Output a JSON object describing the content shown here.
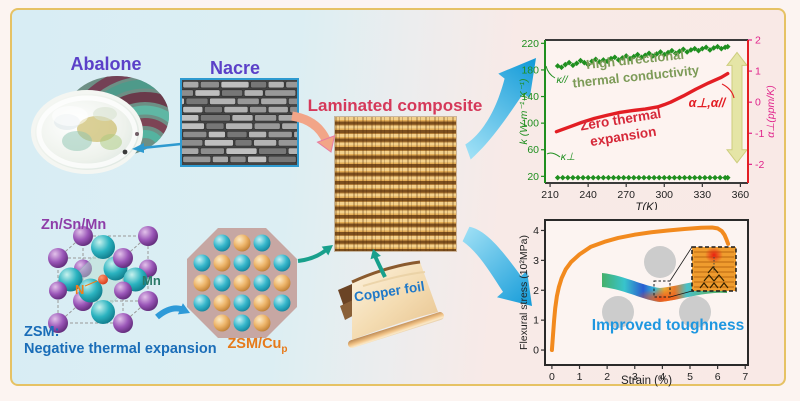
{
  "scene": {
    "abalone_label": "Abalone",
    "nacre_label": "Nacre",
    "laminated_label": "Laminated composite",
    "copper_foil_label": "Copper foil",
    "crystal": {
      "corner_atoms_label": "Zn/Sn/Mn",
      "face_atom_label": "Mn",
      "center_atom_label": "N",
      "caption_line1": "ZSM:",
      "caption_line2": "Negative thermal expansion"
    },
    "octagon": {
      "label": "ZSM/Cu",
      "label_subscript": "p",
      "sphere_rows": [
        "TOT",
        "TOTOT",
        "OTOTO",
        "TOTOT",
        "OTO"
      ]
    }
  },
  "colors": {
    "panel_blue": "#dceef3",
    "panel_pink": "#f9e9e6",
    "border_gold": "#e6c264",
    "purple_label": "#5b40c8",
    "crimson_label": "#d5395a",
    "blue_label": "#1a6db8",
    "orange_label": "#e67a1a",
    "teal_arrow": "#18a08c",
    "blue_arrow": "#1e9ad6",
    "chart_green": "#1f8f1f",
    "chart_red": "#e31e24",
    "chart_magenta": "#e0218a",
    "stress_orange": "#f28a1e",
    "toughness_blue": "#1f97e0"
  },
  "chart_data": [
    {
      "type": "scatter+line",
      "title": "",
      "xlabel": "T(K)",
      "xlim": [
        206,
        366
      ],
      "x_ticks": [
        210,
        240,
        270,
        300,
        330,
        360
      ],
      "left_axis": {
        "label": "k (W·m⁻¹·K⁻¹)",
        "color": "#1f8f1f",
        "ticks": [
          20,
          60,
          100,
          140,
          180,
          220
        ],
        "lim": [
          10,
          225
        ]
      },
      "right_axis": {
        "label": "α⊥(ppm/K)",
        "color": "#e31e24",
        "tick_color": "#e0218a",
        "ticks": [
          2,
          1,
          0,
          -1,
          -2
        ],
        "lim": [
          -2.6,
          2.0
        ]
      },
      "series": [
        {
          "name": "κ//",
          "axis": "left",
          "type": "scatter",
          "color": "#1f8f1f",
          "points": [
            [
              216,
              186
            ],
            [
              219,
              184
            ],
            [
              222,
              188
            ],
            [
              225,
              191
            ],
            [
              228,
              187
            ],
            [
              231,
              190
            ],
            [
              234,
              194
            ],
            [
              237,
              191
            ],
            [
              240,
              188
            ],
            [
              243,
              193
            ],
            [
              246,
              196
            ],
            [
              249,
              192
            ],
            [
              252,
              195
            ],
            [
              255,
              193
            ],
            [
              258,
              197
            ],
            [
              261,
              199
            ],
            [
              264,
              195
            ],
            [
              267,
              198
            ],
            [
              270,
              201
            ],
            [
              273,
              197
            ],
            [
              276,
              200
            ],
            [
              279,
              203
            ],
            [
              282,
              199
            ],
            [
              285,
              202
            ],
            [
              288,
              205
            ],
            [
              291,
              201
            ],
            [
              294,
              204
            ],
            [
              297,
              207
            ],
            [
              300,
              203
            ],
            [
              303,
              206
            ],
            [
              306,
              209
            ],
            [
              309,
              205
            ],
            [
              312,
              208
            ],
            [
              315,
              211
            ],
            [
              318,
              207
            ],
            [
              321,
              210
            ],
            [
              324,
              212
            ],
            [
              327,
              209
            ],
            [
              330,
              212
            ],
            [
              333,
              214
            ],
            [
              336,
              210
            ],
            [
              339,
              213
            ],
            [
              342,
              215
            ],
            [
              345,
              212
            ],
            [
              348,
              214
            ],
            [
              350,
              215
            ]
          ]
        },
        {
          "name": "κ⊥",
          "axis": "left",
          "type": "scatter",
          "color": "#1f8f1f",
          "points": [
            [
              216,
              18
            ],
            [
              220,
              18
            ],
            [
              224,
              18
            ],
            [
              228,
              18
            ],
            [
              232,
              18
            ],
            [
              236,
              18
            ],
            [
              240,
              18
            ],
            [
              244,
              18
            ],
            [
              248,
              18
            ],
            [
              252,
              18
            ],
            [
              256,
              18
            ],
            [
              260,
              18
            ],
            [
              264,
              18
            ],
            [
              268,
              18
            ],
            [
              272,
              18
            ],
            [
              276,
              18
            ],
            [
              280,
              18
            ],
            [
              284,
              18
            ],
            [
              288,
              18
            ],
            [
              292,
              18
            ],
            [
              296,
              18
            ],
            [
              300,
              18
            ],
            [
              304,
              18
            ],
            [
              308,
              18
            ],
            [
              312,
              18
            ],
            [
              316,
              18
            ],
            [
              320,
              18
            ],
            [
              324,
              18
            ],
            [
              328,
              18
            ],
            [
              332,
              18
            ],
            [
              336,
              18
            ],
            [
              340,
              18
            ],
            [
              344,
              18
            ],
            [
              348,
              18
            ],
            [
              350,
              18
            ]
          ]
        },
        {
          "name": "α⊥,α//",
          "axis": "right",
          "type": "line",
          "color": "#e31e24",
          "points": [
            [
              215,
              -0.95
            ],
            [
              225,
              -0.8
            ],
            [
              235,
              -0.65
            ],
            [
              245,
              -0.52
            ],
            [
              255,
              -0.42
            ],
            [
              265,
              -0.33
            ],
            [
              275,
              -0.27
            ],
            [
              285,
              -0.22
            ],
            [
              295,
              -0.15
            ],
            [
              300,
              -0.08
            ],
            [
              305,
              0.0
            ],
            [
              315,
              0.2
            ],
            [
              325,
              0.42
            ],
            [
              335,
              0.62
            ],
            [
              345,
              0.8
            ],
            [
              350,
              0.92
            ]
          ]
        }
      ],
      "annotations": {
        "high_conductivity": [
          "High directional",
          "thermal conductivity"
        ],
        "zero_expansion": [
          "Zero thermal",
          "expansion"
        ],
        "kappa_parallel": "κ//",
        "kappa_perp": "κ⊥",
        "alpha_label": "α⊥,α//"
      }
    },
    {
      "type": "line",
      "title": "",
      "xlabel": "Strain (%)",
      "ylabel": "Flexural stress (10²MPa)",
      "xlim": [
        -0.25,
        7.1
      ],
      "ylim": [
        -0.5,
        4.35
      ],
      "x_ticks": [
        0,
        1,
        2,
        3,
        4,
        5,
        6,
        7
      ],
      "y_ticks": [
        0,
        1,
        2,
        3,
        4
      ],
      "series": [
        {
          "name": "flexural stress",
          "color": "#f28a1e",
          "points": [
            [
              0,
              0
            ],
            [
              0.04,
              0.5
            ],
            [
              0.08,
              1.0
            ],
            [
              0.12,
              1.4
            ],
            [
              0.18,
              1.8
            ],
            [
              0.25,
              2.1
            ],
            [
              0.35,
              2.4
            ],
            [
              0.5,
              2.7
            ],
            [
              0.7,
              2.95
            ],
            [
              1.0,
              3.2
            ],
            [
              1.4,
              3.45
            ],
            [
              1.9,
              3.62
            ],
            [
              2.4,
              3.75
            ],
            [
              3.0,
              3.86
            ],
            [
              3.6,
              3.94
            ],
            [
              4.2,
              4.0
            ],
            [
              4.8,
              4.05
            ],
            [
              5.4,
              4.09
            ],
            [
              5.8,
              4.1
            ],
            [
              6.0,
              4.07
            ],
            [
              6.15,
              3.98
            ],
            [
              6.25,
              3.85
            ],
            [
              6.32,
              3.7
            ],
            [
              6.38,
              3.55
            ]
          ]
        }
      ],
      "annotations": {
        "toughness": "Improved toughness"
      }
    }
  ]
}
